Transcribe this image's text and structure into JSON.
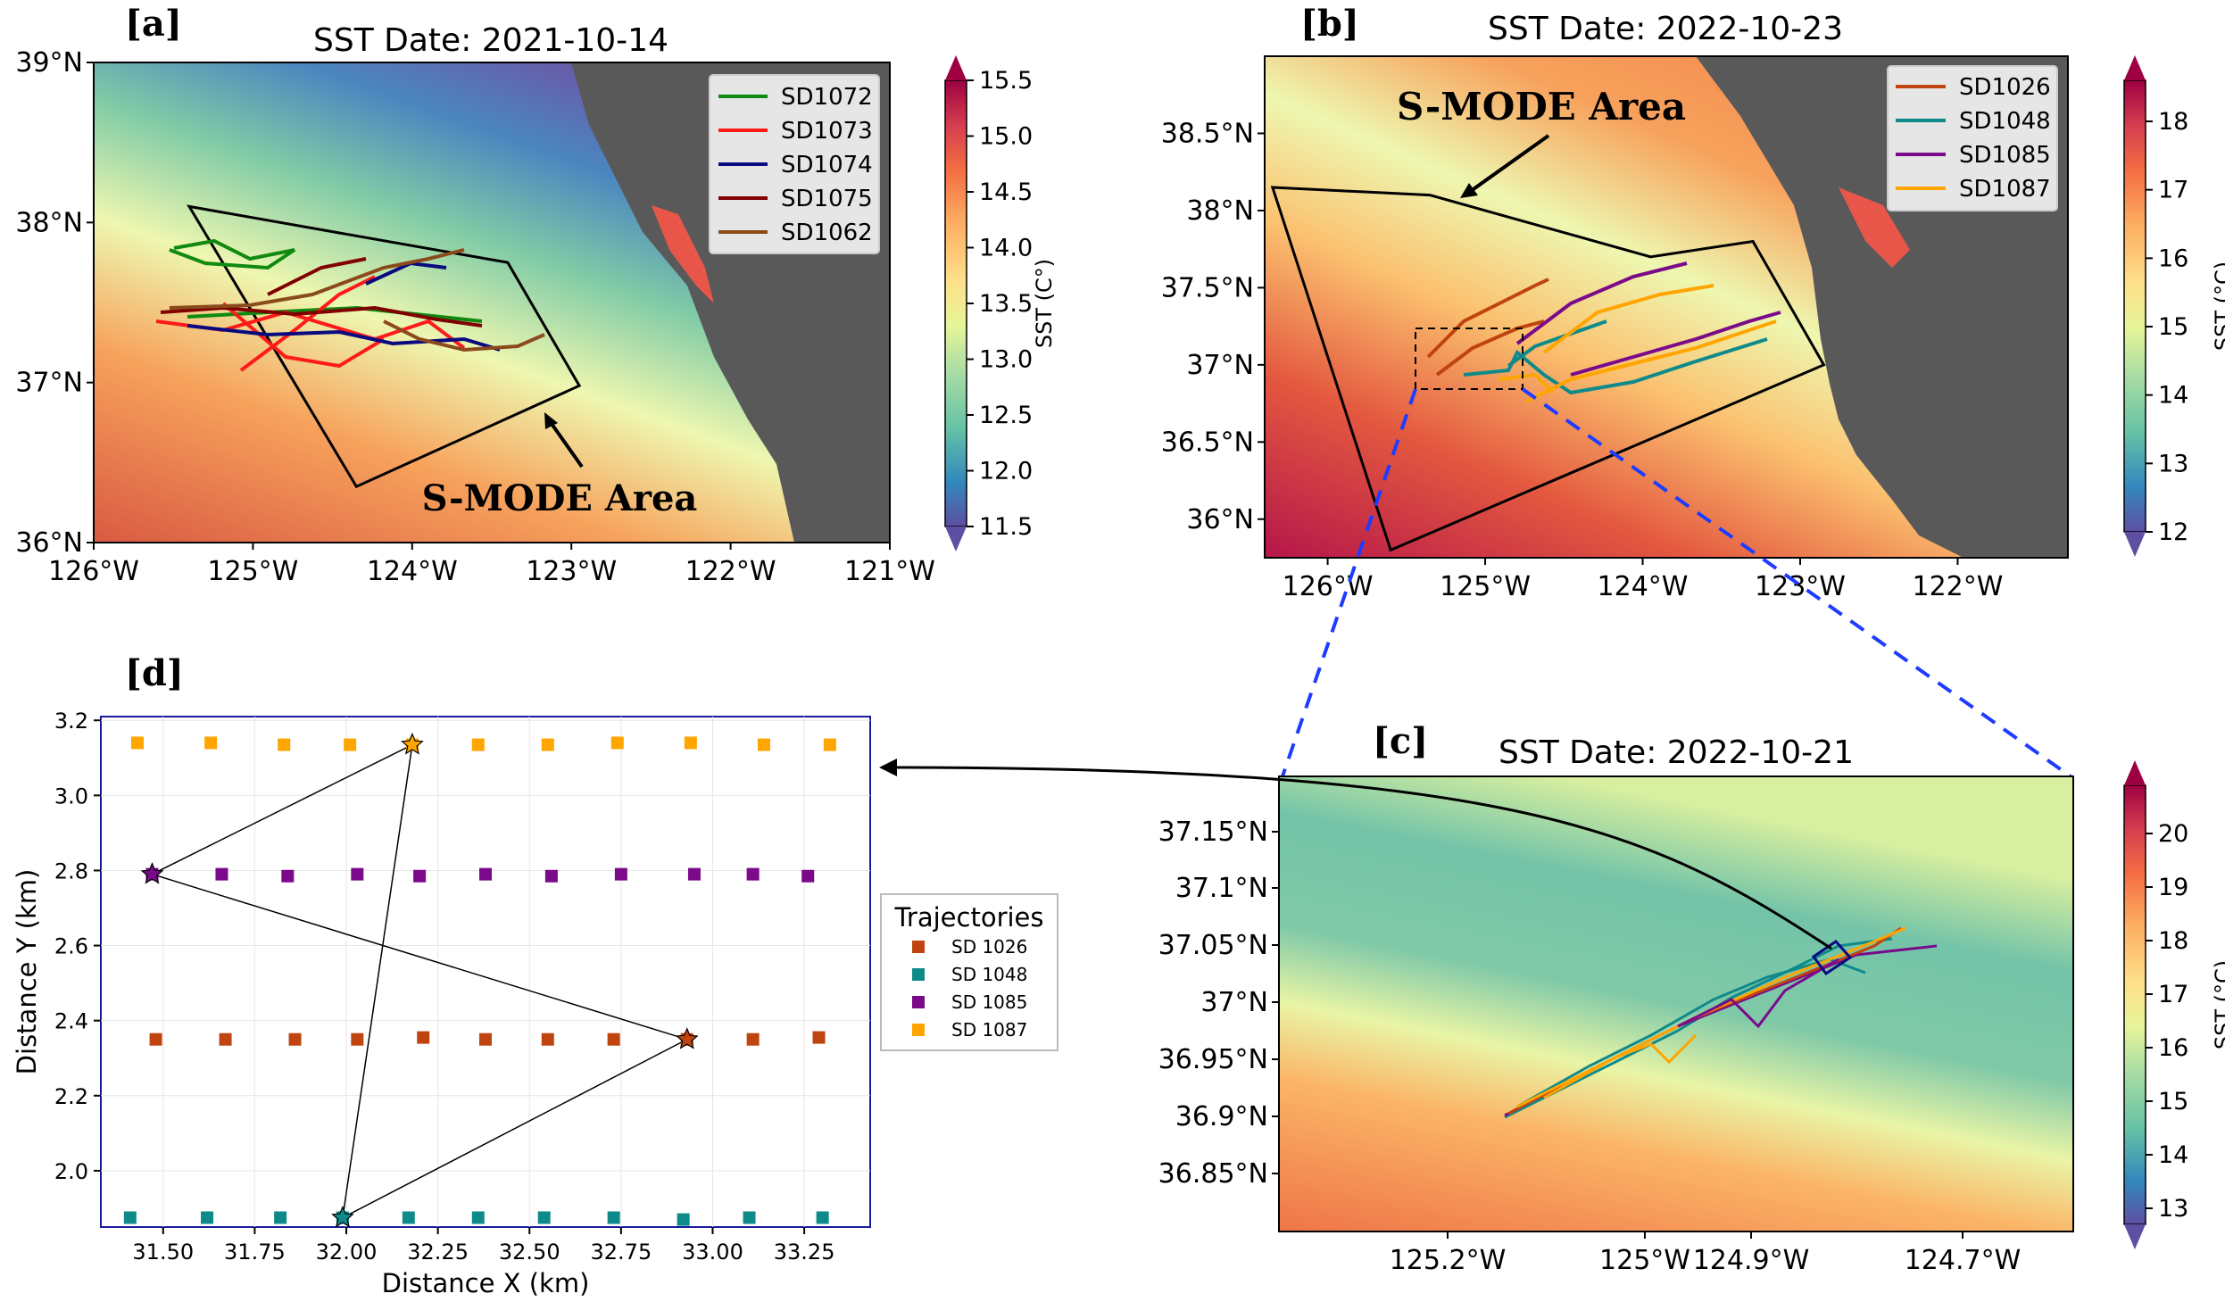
{
  "chart_data": [
    {
      "panel": "[a]",
      "type": "map",
      "title": "SST Date: 2021-10-14",
      "lon_ticks": [
        "126°W",
        "125°W",
        "124°W",
        "123°W",
        "122°W",
        "121°W"
      ],
      "lat_ticks": [
        "39°N",
        "38°N",
        "37°N",
        "36°N"
      ],
      "xlim": [
        -126,
        -121
      ],
      "ylim": [
        36,
        39
      ],
      "colorbar": {
        "label": "SST (C$^\\circ$)",
        "ticks": [
          "15.5",
          "15.0",
          "14.5",
          "14.0",
          "13.5",
          "13.0",
          "12.5",
          "12.0",
          "11.5"
        ],
        "range": [
          11.5,
          15.5
        ]
      },
      "annotation": "S-MODE Area",
      "legend": [
        {
          "name": "SD1072",
          "color": "#108a10"
        },
        {
          "name": "SD1073",
          "color": "#ff1a1a"
        },
        {
          "name": "SD1074",
          "color": "#0a0a80"
        },
        {
          "name": "SD1075",
          "color": "#800000"
        },
        {
          "name": "SD1062",
          "color": "#8b4a1c"
        }
      ],
      "polygon_lonlat": [
        [
          -125.4,
          38.1
        ],
        [
          -123.4,
          37.75
        ],
        [
          -122.95,
          36.98
        ],
        [
          -124.35,
          36.35
        ]
      ]
    },
    {
      "panel": "[b]",
      "type": "map",
      "title": "SST Date: 2022-10-23",
      "lon_ticks": [
        "126°W",
        "125°W",
        "124°W",
        "123°W",
        "122°W"
      ],
      "lat_ticks": [
        "38.5°N",
        "38°N",
        "37.5°N",
        "37°N",
        "36.5°N",
        "36°N"
      ],
      "xlim": [
        -126.4,
        -121.3
      ],
      "ylim": [
        35.75,
        39.0
      ],
      "colorbar": {
        "label": "SST ($^\\circ$C)",
        "ticks": [
          "18",
          "17",
          "16",
          "15",
          "14",
          "13",
          "12"
        ],
        "range": [
          12,
          18.6
        ]
      },
      "annotation": "S-MODE Area",
      "legend": [
        {
          "name": "SD1026",
          "color": "#c0440f"
        },
        {
          "name": "SD1048",
          "color": "#0f8a8a"
        },
        {
          "name": "SD1085",
          "color": "#7a0a8a"
        },
        {
          "name": "SD1087",
          "color": "#ffa500"
        }
      ],
      "polygon_lonlat": [
        [
          -126.35,
          38.15
        ],
        [
          -125.35,
          38.1
        ],
        [
          -123.95,
          37.7
        ],
        [
          -123.3,
          37.8
        ],
        [
          -122.85,
          37.0
        ],
        [
          -125.6,
          35.8
        ]
      ]
    },
    {
      "panel": "[c]",
      "type": "map",
      "title": "SST Date: 2022-10-21",
      "lon_ticks": [
        "125.2°W",
        "125°W",
        "124.9°W",
        "124.7°W"
      ],
      "lat_ticks": [
        "37.15°N",
        "37.1°N",
        "37.05°N",
        "37°N",
        "36.95°N",
        "36.9°N",
        "36.85°N"
      ],
      "xlim": [
        -125.33,
        -124.62
      ],
      "ylim": [
        36.8,
        37.2
      ],
      "colorbar": {
        "label": "SST ($^\\circ$C)",
        "ticks": [
          "20",
          "19",
          "18",
          "17",
          "16",
          "15",
          "14",
          "13"
        ],
        "range": [
          12.7,
          20.9
        ]
      }
    },
    {
      "panel": "[d]",
      "type": "scatter",
      "xlabel": "Distance X (km)",
      "ylabel": "Distance Y (km)",
      "x_ticks": [
        "31.50",
        "31.75",
        "32.00",
        "32.25",
        "32.50",
        "32.75",
        "33.00",
        "33.25"
      ],
      "y_ticks": [
        "3.2",
        "3.0",
        "2.8",
        "2.6",
        "2.4",
        "2.2",
        "2.0"
      ],
      "xlim": [
        31.33,
        33.43
      ],
      "ylim": [
        1.85,
        3.21
      ],
      "legend_title": "Trajectories",
      "series": [
        {
          "name": "SD 1026",
          "color": "#c0440f",
          "x": [
            31.48,
            31.67,
            31.86,
            32.03,
            32.21,
            32.38,
            32.55,
            32.73,
            32.93,
            33.11,
            33.29
          ],
          "y": [
            2.35,
            2.35,
            2.35,
            2.35,
            2.355,
            2.35,
            2.35,
            2.35,
            2.35,
            2.35,
            2.355
          ]
        },
        {
          "name": "SD 1048",
          "color": "#0f8a8a",
          "x": [
            31.41,
            31.62,
            31.82,
            31.99,
            32.17,
            32.36,
            32.54,
            32.73,
            32.92,
            33.1,
            33.3
          ],
          "y": [
            1.875,
            1.875,
            1.875,
            1.875,
            1.875,
            1.875,
            1.875,
            1.875,
            1.87,
            1.875,
            1.875
          ]
        },
        {
          "name": "SD 1085",
          "color": "#7a0a8a",
          "x": [
            31.47,
            31.66,
            31.84,
            32.03,
            32.2,
            32.38,
            32.56,
            32.75,
            32.95,
            33.11,
            33.26
          ],
          "y": [
            2.79,
            2.79,
            2.785,
            2.79,
            2.785,
            2.79,
            2.785,
            2.79,
            2.79,
            2.79,
            2.785
          ]
        },
        {
          "name": "SD 1087",
          "color": "#ffa500",
          "x": [
            31.43,
            31.63,
            31.83,
            32.01,
            32.18,
            32.36,
            32.55,
            32.74,
            32.94,
            33.14,
            33.32
          ],
          "y": [
            3.14,
            3.14,
            3.135,
            3.135,
            3.135,
            3.135,
            3.135,
            3.14,
            3.14,
            3.135,
            3.135
          ]
        }
      ],
      "stars": [
        {
          "x": 32.18,
          "y": 3.135,
          "color": "#ffa500"
        },
        {
          "x": 31.47,
          "y": 2.79,
          "color": "#7a0a8a"
        },
        {
          "x": 32.93,
          "y": 2.35,
          "color": "#c0440f"
        },
        {
          "x": 31.99,
          "y": 1.875,
          "color": "#0f8a8a"
        }
      ]
    }
  ]
}
